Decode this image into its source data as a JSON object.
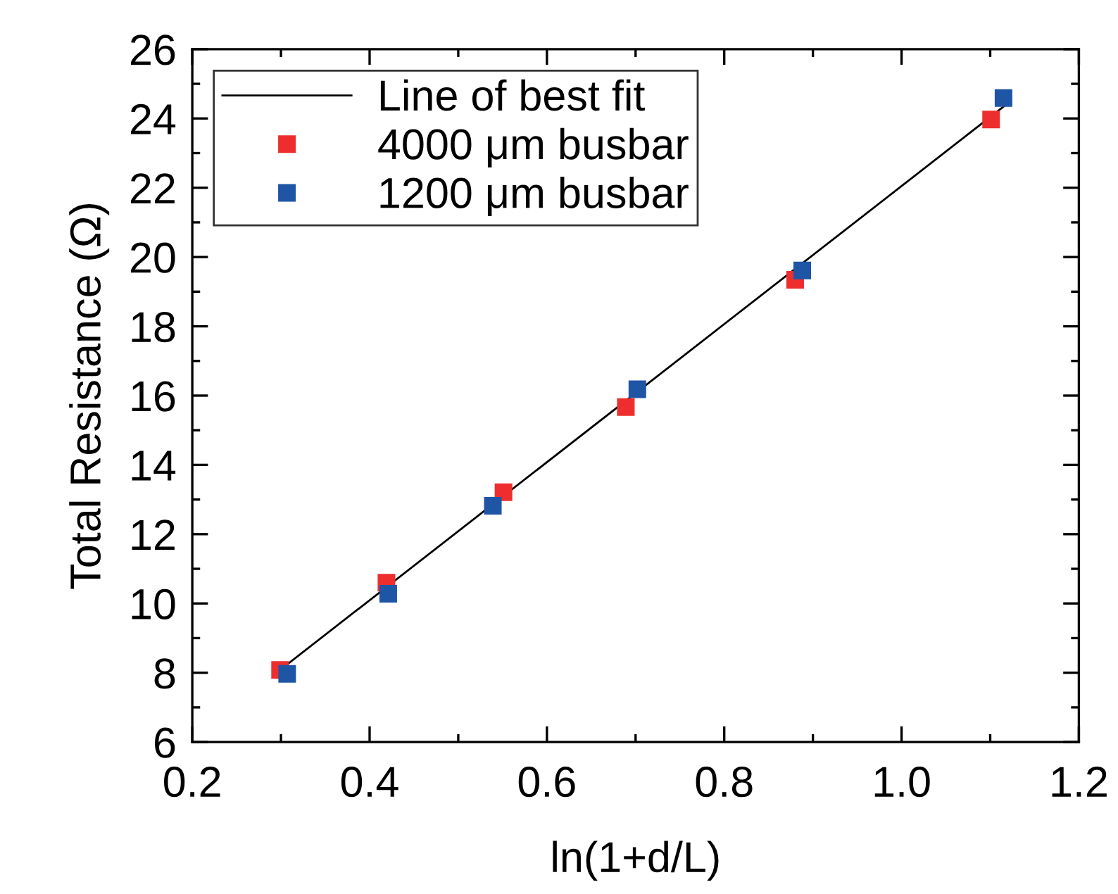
{
  "chart_data": {
    "type": "scatter",
    "xlabel": "ln(1+d/L)",
    "ylabel": "Total Resistance (Ω)",
    "xlim": [
      0.2,
      1.2
    ],
    "xticks": [
      {
        "value": 0.2,
        "label": "0.2"
      },
      {
        "value": 0.4,
        "label": "0.4"
      },
      {
        "value": 0.6,
        "label": "0.6"
      },
      {
        "value": 0.8,
        "label": "0.8"
      },
      {
        "value": 1.0,
        "label": "1.0"
      },
      {
        "value": 1.2,
        "label": "1.2"
      }
    ],
    "ylim": [
      6,
      26
    ],
    "yticks": [
      6,
      8,
      10,
      12,
      14,
      16,
      18,
      20,
      22,
      24,
      26
    ],
    "marker": "square",
    "grid": false,
    "legend": "top left",
    "series": [
      {
        "name": "Line of best fit",
        "type": "line",
        "color": "#000000",
        "x": [
          0.303,
          1.116
        ],
        "values": [
          8.16,
          24.36
        ],
        "marker": "none",
        "line_style": "solid"
      },
      {
        "name": "4000 μm busbar",
        "color": "#ee2e2e",
        "x": [
          0.299,
          0.419,
          0.551,
          0.689,
          0.88,
          1.101
        ],
        "values": [
          8.08,
          10.6,
          13.21,
          15.67,
          19.34,
          23.97
        ]
      },
      {
        "name": "1200 μm busbar",
        "color": "#1f55a5",
        "x": [
          0.307,
          0.421,
          0.539,
          0.702,
          0.888,
          1.115
        ],
        "values": [
          7.97,
          10.28,
          12.82,
          16.18,
          19.61,
          24.59
        ]
      }
    ]
  }
}
